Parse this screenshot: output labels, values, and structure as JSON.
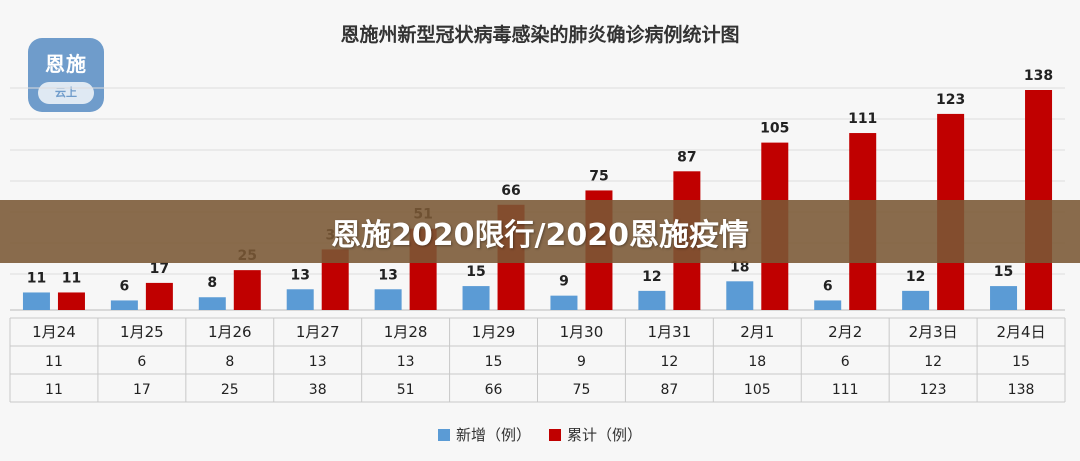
{
  "header": {
    "chart_title": "恩施州新型冠状病毒感染的肺炎确诊病例统计图",
    "logo_text": "恩施",
    "logo_subtext": "云上"
  },
  "banner": {
    "text": "恩施2020限行/2020恩施疫情"
  },
  "colors": {
    "new": "#5b9bd5",
    "total": "#c00000",
    "banner": "#7a5834"
  },
  "legend": {
    "new_label": "新增（例）",
    "total_label": "累计（例）"
  },
  "chart_data": {
    "type": "bar",
    "title": "恩施州新型冠状病毒感染的肺炎确诊病例统计图",
    "categories": [
      "1月24",
      "1月25",
      "1月26",
      "1月27",
      "1月28",
      "1月29",
      "1月30",
      "1月31",
      "2月1",
      "2月2",
      "2月3日",
      "2月4日"
    ],
    "series": [
      {
        "name": "新增（例）",
        "values": [
          11,
          6,
          8,
          13,
          13,
          15,
          9,
          12,
          18,
          6,
          12,
          15
        ]
      },
      {
        "name": "累计（例）",
        "values": [
          11,
          17,
          25,
          38,
          51,
          66,
          75,
          87,
          105,
          111,
          123,
          138
        ]
      }
    ],
    "ylim": [
      0,
      150
    ],
    "grid": true,
    "legend_position": "bottom",
    "data_table": true
  }
}
